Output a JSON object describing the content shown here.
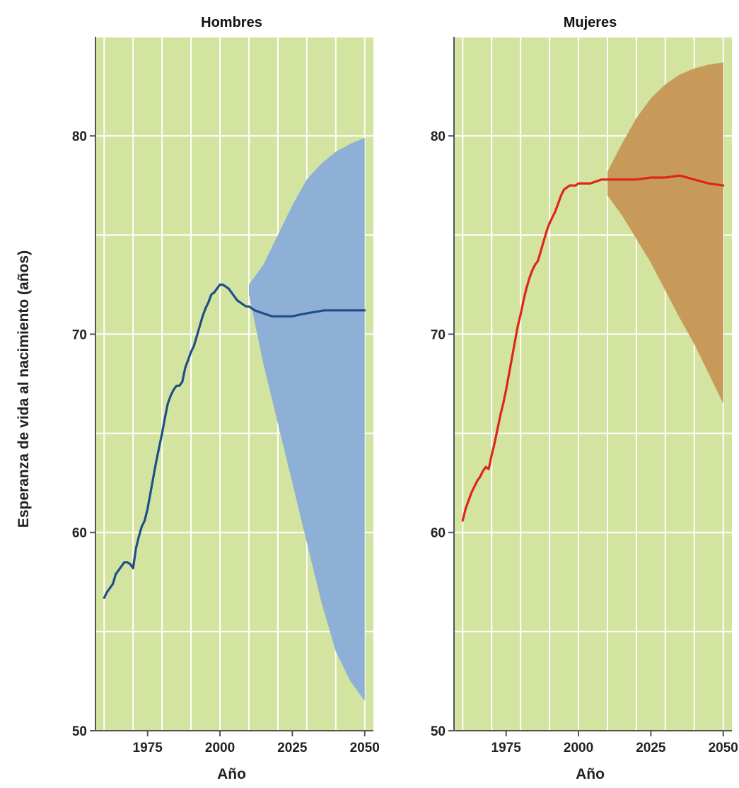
{
  "ylabel": "Esperanza de vida al nacimiento (años)",
  "colors": {
    "background": "#d3e3a0",
    "grid": "#ffffff",
    "axis": "#555555",
    "hombres_line": "#1f4e8a",
    "hombres_band": "#8eb0d6",
    "mujeres_line": "#e0241a",
    "mujeres_band": "#c79a5a"
  },
  "chart_data": [
    {
      "type": "line",
      "title": "Hombres",
      "xlabel": "Año",
      "ylabel": "Esperanza de vida al nacimiento (años)",
      "xlim": [
        1957,
        2053
      ],
      "ylim": [
        50,
        85
      ],
      "x_ticks": [
        1975,
        2000,
        2025,
        2050
      ],
      "y_ticks": [
        50,
        60,
        70,
        80
      ],
      "grid": true,
      "series": [
        {
          "role": "estimate",
          "x": [
            1960,
            1961,
            1962,
            1963,
            1964,
            1965,
            1966,
            1967,
            1968,
            1969,
            1970,
            1971,
            1972,
            1973,
            1974,
            1975,
            1976,
            1977,
            1978,
            1979,
            1980,
            1981,
            1982,
            1983,
            1984,
            1985,
            1986,
            1987,
            1988,
            1989,
            1990,
            1991,
            1992,
            1993,
            1994,
            1995,
            1996,
            1997,
            1998,
            1999,
            2000,
            2001,
            2002,
            2003,
            2004,
            2005,
            2006,
            2007,
            2008,
            2009,
            2010,
            2012,
            2014,
            2016,
            2018,
            2020,
            2022,
            2025,
            2028,
            2032,
            2036,
            2040,
            2044,
            2050
          ],
          "values": [
            56.7,
            57.0,
            57.2,
            57.4,
            57.9,
            58.1,
            58.3,
            58.5,
            58.5,
            58.4,
            58.2,
            59.2,
            59.8,
            60.3,
            60.6,
            61.2,
            62.0,
            62.8,
            63.6,
            64.3,
            65.0,
            65.8,
            66.5,
            66.9,
            67.2,
            67.4,
            67.4,
            67.6,
            68.3,
            68.7,
            69.1,
            69.4,
            69.9,
            70.4,
            70.9,
            71.3,
            71.6,
            72.0,
            72.1,
            72.3,
            72.5,
            72.5,
            72.4,
            72.3,
            72.1,
            71.9,
            71.7,
            71.6,
            71.5,
            71.4,
            71.4,
            71.2,
            71.1,
            71.0,
            70.9,
            70.9,
            70.9,
            70.9,
            71.0,
            71.1,
            71.2,
            71.2,
            71.2,
            71.2
          ]
        },
        {
          "role": "projection-range",
          "x": [
            2010,
            2015,
            2020,
            2025,
            2030,
            2035,
            2040,
            2045,
            2050
          ],
          "lower": [
            72.0,
            68.5,
            65.5,
            62.5,
            59.5,
            56.5,
            54.0,
            52.5,
            51.5
          ],
          "upper": [
            72.5,
            73.5,
            75.0,
            76.5,
            77.8,
            78.6,
            79.2,
            79.6,
            79.9
          ]
        }
      ]
    },
    {
      "type": "line",
      "title": "Mujeres",
      "xlabel": "Año",
      "ylabel": "Esperanza de vida al nacimiento (años)",
      "xlim": [
        1957,
        2053
      ],
      "ylim": [
        50,
        85
      ],
      "x_ticks": [
        1975,
        2000,
        2025,
        2050
      ],
      "y_ticks": [
        50,
        60,
        70,
        80
      ],
      "grid": true,
      "series": [
        {
          "role": "estimate",
          "x": [
            1960,
            1961,
            1962,
            1963,
            1964,
            1965,
            1966,
            1967,
            1968,
            1969,
            1970,
            1971,
            1972,
            1973,
            1974,
            1975,
            1976,
            1977,
            1978,
            1979,
            1980,
            1981,
            1982,
            1983,
            1984,
            1985,
            1986,
            1987,
            1988,
            1989,
            1990,
            1991,
            1992,
            1993,
            1994,
            1995,
            1996,
            1997,
            1998,
            1999,
            2000,
            2002,
            2004,
            2006,
            2008,
            2010,
            2015,
            2020,
            2025,
            2030,
            2035,
            2040,
            2045,
            2050
          ],
          "values": [
            60.6,
            61.2,
            61.6,
            62.0,
            62.3,
            62.6,
            62.8,
            63.1,
            63.3,
            63.2,
            63.9,
            64.5,
            65.2,
            65.9,
            66.5,
            67.2,
            68.0,
            68.8,
            69.6,
            70.4,
            71.0,
            71.7,
            72.3,
            72.8,
            73.2,
            73.5,
            73.7,
            74.2,
            74.7,
            75.2,
            75.6,
            75.9,
            76.2,
            76.6,
            77.0,
            77.3,
            77.4,
            77.5,
            77.5,
            77.5,
            77.6,
            77.6,
            77.6,
            77.7,
            77.8,
            77.8,
            77.8,
            77.8,
            77.9,
            77.9,
            78.0,
            77.8,
            77.6,
            77.5
          ]
        },
        {
          "role": "projection-range",
          "x": [
            2010,
            2015,
            2020,
            2025,
            2030,
            2035,
            2040,
            2045,
            2050
          ],
          "lower": [
            77.0,
            76.0,
            74.8,
            73.6,
            72.2,
            70.8,
            69.5,
            68.0,
            66.5
          ],
          "upper": [
            78.2,
            79.6,
            80.9,
            81.9,
            82.6,
            83.1,
            83.4,
            83.6,
            83.7
          ]
        }
      ]
    }
  ]
}
